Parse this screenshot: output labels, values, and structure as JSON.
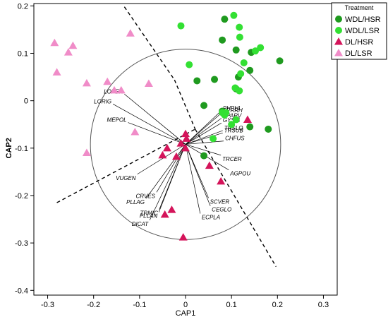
{
  "chart_data": {
    "type": "scatter",
    "xlabel": "CAP1",
    "ylabel": "CAP2",
    "xlim": [
      -0.33,
      0.33
    ],
    "ylim": [
      -0.41,
      0.205
    ],
    "x_ticks": [
      -0.3,
      -0.2,
      -0.1,
      0,
      0.1,
      0.2,
      0.3
    ],
    "x_tick_labels": [
      "-0.3",
      "-0.2",
      "-0.1",
      "0",
      "0.1",
      "0.2",
      "0.3"
    ],
    "y_ticks": [
      -0.4,
      -0.3,
      -0.2,
      -0.1,
      0,
      0.1,
      0.2
    ],
    "y_tick_labels": [
      "-0.4",
      "-0.3",
      "-0.2",
      "-0.1",
      "0",
      "0.1",
      "0.2"
    ],
    "grid": false,
    "legend": {
      "title": "Treatment",
      "position": "top-right",
      "entries": [
        {
          "name": "WDL/HSR",
          "marker": "circle",
          "color": "#1f9a1f"
        },
        {
          "name": "WDL/LSR",
          "marker": "circle",
          "color": "#33e033"
        },
        {
          "name": "DL/HSR",
          "marker": "triangle",
          "color": "#d4145a"
        },
        {
          "name": "DL/LSR",
          "marker": "triangle",
          "color": "#f08cc8"
        }
      ]
    },
    "series": [
      {
        "name": "WDL/HSR",
        "marker": "circle",
        "color": "#1f9a1f",
        "points": [
          [
            0.085,
            0.172
          ],
          [
            0.08,
            0.128
          ],
          [
            0.11,
            0.107
          ],
          [
            0.143,
            0.102
          ],
          [
            0.205,
            0.084
          ],
          [
            0.14,
            0.064
          ],
          [
            0.115,
            0.05
          ],
          [
            0.025,
            0.042
          ],
          [
            0.063,
            0.045
          ],
          [
            0.11,
            0.025
          ],
          [
            0.04,
            -0.01
          ],
          [
            0.08,
            -0.022
          ],
          [
            0.14,
            -0.055
          ],
          [
            0.18,
            -0.06
          ],
          [
            0.04,
            -0.116
          ]
        ]
      },
      {
        "name": "WDL/LSR",
        "marker": "circle",
        "color": "#33e033",
        "points": [
          [
            0.105,
            0.18
          ],
          [
            -0.01,
            0.158
          ],
          [
            0.117,
            0.155
          ],
          [
            0.118,
            0.134
          ],
          [
            0.163,
            0.112
          ],
          [
            0.152,
            0.105
          ],
          [
            0.127,
            0.08
          ],
          [
            0.008,
            0.076
          ],
          [
            0.12,
            0.057
          ],
          [
            0.108,
            0.027
          ],
          [
            0.117,
            0.021
          ],
          [
            0.08,
            -0.025
          ],
          [
            0.088,
            -0.025
          ],
          [
            0.085,
            -0.03
          ],
          [
            0.11,
            -0.04
          ],
          [
            0.1,
            -0.05
          ],
          [
            0.06,
            -0.08
          ]
        ]
      },
      {
        "name": "DL/HSR",
        "marker": "triangle",
        "color": "#d4145a",
        "points": [
          [
            0.135,
            -0.04
          ],
          [
            0.0,
            -0.07
          ],
          [
            0.002,
            -0.08
          ],
          [
            -0.04,
            -0.1
          ],
          [
            -0.01,
            -0.09
          ],
          [
            0.0,
            -0.1
          ],
          [
            -0.05,
            -0.115
          ],
          [
            -0.02,
            -0.118
          ],
          [
            0.052,
            -0.137
          ],
          [
            0.077,
            -0.17
          ],
          [
            -0.03,
            -0.23
          ],
          [
            -0.045,
            -0.24
          ],
          [
            -0.005,
            -0.288
          ]
        ]
      },
      {
        "name": "DL/LSR",
        "marker": "triangle",
        "color": "#f08cc8",
        "points": [
          [
            -0.285,
            0.122
          ],
          [
            -0.245,
            0.116
          ],
          [
            -0.255,
            0.102
          ],
          [
            -0.12,
            0.142
          ],
          [
            -0.28,
            0.06
          ],
          [
            -0.215,
            0.037
          ],
          [
            -0.17,
            0.04
          ],
          [
            -0.08,
            0.036
          ],
          [
            -0.155,
            0.022
          ],
          [
            -0.14,
            0.022
          ],
          [
            -0.11,
            -0.066
          ],
          [
            -0.215,
            -0.11
          ]
        ]
      }
    ],
    "vectors": {
      "origin": [
        0.0,
        -0.092
      ],
      "circle_radius": 0.207,
      "items": [
        {
          "label": "LOPER",
          "x": -0.133,
          "y": 0.014
        },
        {
          "label": "LORIG",
          "x": -0.158,
          "y": -0.007
        },
        {
          "label": "MEPOL",
          "x": -0.125,
          "y": -0.046
        },
        {
          "label": "PHPHL",
          "x": 0.078,
          "y": -0.021
        },
        {
          "label": "SPRRH",
          "x": 0.078,
          "y": -0.026
        },
        {
          "label": "APARV",
          "x": 0.078,
          "y": -0.037
        },
        {
          "label": "GYSIS",
          "x": 0.078,
          "y": -0.047
        },
        {
          "label": "TRSLO",
          "x": 0.081,
          "y": -0.063
        },
        {
          "label": "TRSUB",
          "x": 0.081,
          "y": -0.068
        },
        {
          "label": "CHFUS",
          "x": 0.083,
          "y": -0.085
        },
        {
          "label": "TRCER",
          "x": 0.077,
          "y": -0.115
        },
        {
          "label": "AGPOU",
          "x": 0.094,
          "y": -0.146
        },
        {
          "label": "VUGEN",
          "x": -0.105,
          "y": -0.155
        },
        {
          "label": "CRVES",
          "x": -0.063,
          "y": -0.193
        },
        {
          "label": "PLLAG",
          "x": -0.086,
          "y": -0.206
        },
        {
          "label": "SCVER",
          "x": 0.05,
          "y": -0.205
        },
        {
          "label": "CEGLO",
          "x": 0.054,
          "y": -0.222
        },
        {
          "label": "ECPLA",
          "x": 0.032,
          "y": -0.238
        },
        {
          "label": "TRMIC",
          "x": -0.057,
          "y": -0.229
        },
        {
          "label": "PLLAN",
          "x": -0.058,
          "y": -0.235
        },
        {
          "label": "DICAT",
          "x": -0.078,
          "y": -0.252
        }
      ]
    },
    "dividers": [
      [
        [
          -0.133,
          0.198
        ],
        [
          -0.024,
          0.044
        ]
      ],
      [
        [
          -0.024,
          0.044
        ],
        [
          0.021,
          -0.06
        ]
      ],
      [
        [
          0.021,
          -0.06
        ],
        [
          0.197,
          -0.35
        ]
      ],
      [
        [
          -0.28,
          -0.215
        ],
        [
          0.021,
          -0.06
        ]
      ]
    ]
  }
}
